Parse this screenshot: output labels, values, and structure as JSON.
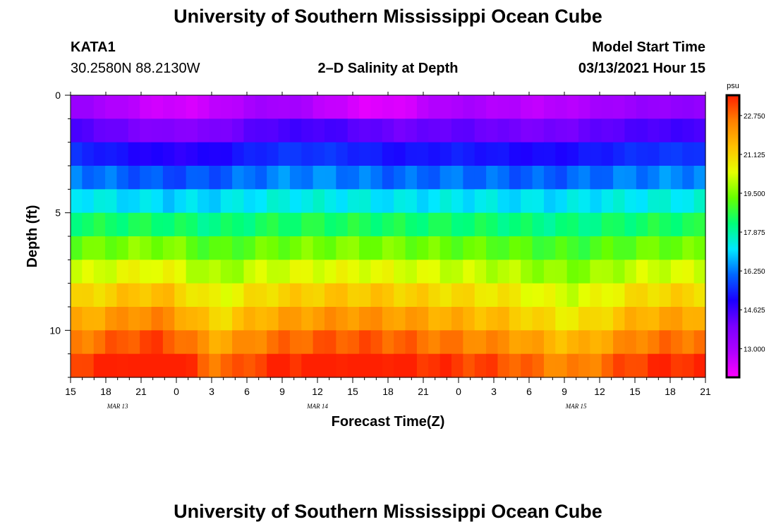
{
  "page": {
    "title_top": "University of Southern Mississippi Ocean Cube",
    "title_bottom": "University of Southern Mississippi Ocean Cube",
    "station_id": "KATA1",
    "station_coords": "30.2580N 88.2130W",
    "model_start_label": "Model Start Time",
    "model_start_value": "03/13/2021 Hour 15"
  },
  "colors": {
    "background": "#ffffff",
    "axis": "#000000",
    "colormap": [
      "#ff00ff",
      "#b000ff",
      "#7a00ff",
      "#1c00ff",
      "#0066ff",
      "#00e8ff",
      "#00ff78",
      "#66ff00",
      "#e6ff00",
      "#ffc000",
      "#ff8000",
      "#ff2000"
    ]
  },
  "chart_data": {
    "type": "heatmap",
    "title": "2–D Salinity at Depth",
    "xlabel": "Forecast Time(Z)",
    "ylabel": "Depth (ft)",
    "x_start_hour": 15,
    "x_step_hours": 1,
    "x_count": 55,
    "x_tick_labels": [
      "15",
      "18",
      "21",
      "0",
      "3",
      "6",
      "9",
      "12",
      "15",
      "18",
      "21",
      "0",
      "3",
      "6",
      "9",
      "12",
      "15",
      "18",
      "21"
    ],
    "date_labels": [
      {
        "label": "MAR 13",
        "hour_offset": 4
      },
      {
        "label": "MAR 14",
        "hour_offset": 21
      },
      {
        "label": "MAR 15",
        "hour_offset": 43
      }
    ],
    "y_ticks": [
      "0",
      "5",
      "10"
    ],
    "ylim": [
      0,
      12
    ],
    "depth_layers_ft": [
      0.5,
      1.5,
      2.5,
      3.5,
      4.5,
      5.5,
      6.5,
      7.5,
      8.5,
      9.5,
      10.5,
      11.5
    ],
    "colorbar": {
      "units": "psu",
      "min": 11.8,
      "max": 23.6,
      "tick_labels": [
        "13.000",
        "14.625",
        "16.250",
        "17.875",
        "19.500",
        "21.125",
        "22.750"
      ]
    },
    "layer_base_values": [
      13.5,
      14.6,
      15.6,
      16.4,
      17.4,
      18.4,
      19.2,
      20.0,
      20.8,
      21.5,
      22.3,
      23.1
    ],
    "variation": {
      "upper_dip": [
        {
          "hour": 7,
          "width": 4,
          "amp": -0.9
        },
        {
          "hour": 12,
          "width": 3,
          "amp": -0.5
        },
        {
          "hour": 28,
          "width": 3,
          "amp": -0.6
        },
        {
          "hour": 40,
          "width": 5,
          "amp": -0.8
        }
      ],
      "lower_bump": [
        {
          "hour": 7,
          "width": 4,
          "amp": 0.9
        },
        {
          "hour": 12,
          "width": 2,
          "amp": -0.9
        },
        {
          "hour": 24,
          "width": 6,
          "amp": 0.7
        },
        {
          "hour": 43,
          "width": 3,
          "amp": -0.8
        },
        {
          "hour": 52,
          "width": 5,
          "amp": 0.4
        }
      ],
      "surface_minimum": {
        "hour": 24,
        "width": 4,
        "amp": -0.9
      }
    }
  }
}
